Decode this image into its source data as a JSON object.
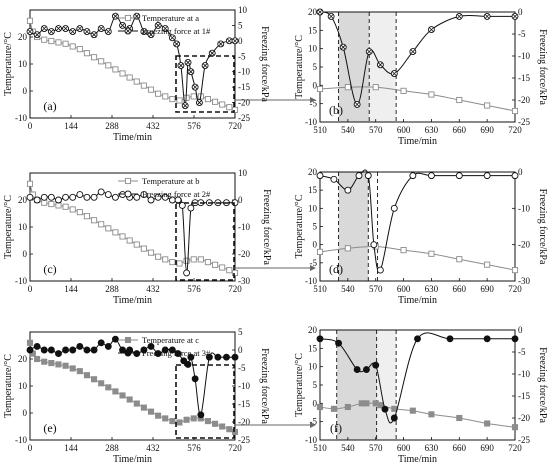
{
  "chart_data": [
    {
      "panel": "(a)",
      "type": "line",
      "xlabel": "Time/min",
      "ylabel": "Temperature/°C",
      "y2label": "Freezing force/kPa",
      "xlim": [
        0,
        720
      ],
      "xticks": [
        0,
        144,
        288,
        432,
        576,
        720
      ],
      "ylim": [
        -10,
        30
      ],
      "yticks": [
        -10,
        0,
        10,
        20
      ],
      "y2lim": [
        -25,
        10
      ],
      "y2ticks": [
        -25,
        -20,
        -15,
        -10,
        -5,
        0,
        5,
        10
      ],
      "legend": [
        "Temperature at a",
        "Freezing force at 1#"
      ],
      "series": [
        {
          "name": "Temperature at a",
          "axis": "left",
          "marker": "square-open",
          "x": [
            0,
            10,
            25,
            50,
            75,
            100,
            125,
            150,
            175,
            200,
            225,
            250,
            275,
            300,
            325,
            350,
            375,
            400,
            425,
            450,
            475,
            500,
            525,
            550,
            575,
            600,
            625,
            650,
            675,
            700,
            720
          ],
          "y": [
            26,
            22,
            20,
            19,
            18.5,
            18,
            17.5,
            16.5,
            15.5,
            14,
            12.5,
            11,
            9.5,
            8,
            6.5,
            5,
            3.5,
            2,
            0.5,
            -1,
            -2,
            -3,
            -3.5,
            -2.5,
            -2,
            -2,
            -3,
            -4,
            -5,
            -6,
            -7
          ]
        },
        {
          "name": "Freezing force at 1#",
          "axis": "right",
          "marker": "circle-x",
          "x": [
            0,
            25,
            50,
            75,
            100,
            125,
            150,
            175,
            200,
            225,
            250,
            275,
            300,
            325,
            350,
            375,
            400,
            425,
            450,
            475,
            500,
            515,
            530,
            545,
            555,
            565,
            580,
            595,
            615,
            640,
            670,
            700,
            720
          ],
          "y": [
            3,
            2,
            4,
            3,
            4,
            4,
            3,
            4,
            3,
            2,
            4,
            3,
            8,
            5,
            4,
            8,
            3,
            2,
            5,
            4,
            1,
            -1,
            -8,
            -21,
            -7,
            -10,
            -15,
            -20,
            -8,
            -4,
            -1,
            0,
            0
          ]
        }
      ]
    },
    {
      "panel": "(b)",
      "type": "line",
      "xlim": [
        510,
        720
      ],
      "xticks": [
        510,
        540,
        570,
        600,
        630,
        660,
        690,
        720
      ],
      "ylim": [
        -10,
        20
      ],
      "yticks": [
        -10,
        -5,
        0,
        5,
        10,
        15,
        20
      ],
      "y2lim": [
        -25,
        0
      ],
      "y2ticks": [
        -25,
        -20,
        -15,
        -10,
        -5,
        0
      ],
      "shaded": [
        [
          530,
          563
        ],
        [
          563,
          592
        ]
      ],
      "dashed_lines": [
        530,
        563,
        592
      ],
      "series": [
        {
          "name": "Temperature at a",
          "axis": "left",
          "marker": "square-open",
          "x": [
            510,
            540,
            570,
            600,
            630,
            660,
            690,
            720
          ],
          "y": [
            -1,
            -0.5,
            -0.5,
            -1.5,
            -2.5,
            -4,
            -5.5,
            -7
          ]
        },
        {
          "name": "Freezing force at 1#",
          "axis": "right",
          "marker": "circle-x",
          "x": [
            510,
            522,
            535,
            550,
            563,
            575,
            590,
            610,
            630,
            660,
            690,
            720
          ],
          "y": [
            0,
            -1,
            -8,
            -21,
            -9,
            -12,
            -14,
            -9,
            -4,
            -1,
            -1,
            -1
          ]
        }
      ]
    },
    {
      "panel": "(c)",
      "type": "line",
      "xlabel": "Time/min",
      "ylabel": "Temperature/°C",
      "y2label": "Freezing force/kPa",
      "xlim": [
        0,
        720
      ],
      "xticks": [
        0,
        144,
        288,
        432,
        576,
        720
      ],
      "ylim": [
        -10,
        30
      ],
      "yticks": [
        -10,
        0,
        10,
        20
      ],
      "y2lim": [
        -30,
        10
      ],
      "y2ticks": [
        -30,
        -20,
        -10,
        0,
        10
      ],
      "legend": [
        "Temperature at b",
        "Freezing force at 2#"
      ],
      "series": [
        {
          "name": "Temperature at b",
          "axis": "left",
          "marker": "square-open",
          "x": [
            0,
            10,
            25,
            50,
            75,
            100,
            125,
            150,
            175,
            200,
            225,
            250,
            275,
            300,
            325,
            350,
            375,
            400,
            425,
            450,
            475,
            500,
            525,
            550,
            575,
            600,
            625,
            650,
            675,
            700,
            720
          ],
          "y": [
            26,
            22,
            20,
            19,
            18.5,
            18,
            17.5,
            16.5,
            15.5,
            14,
            12.5,
            11,
            9.5,
            8,
            6.5,
            5,
            3.5,
            2,
            0.5,
            -1,
            -2,
            -3,
            -3.5,
            -2.5,
            -2,
            -2,
            -3,
            -4,
            -5,
            -6,
            -7
          ]
        },
        {
          "name": "Freezing force at 2#",
          "axis": "right",
          "marker": "circle-open",
          "x": [
            0,
            25,
            50,
            75,
            100,
            125,
            150,
            175,
            200,
            225,
            250,
            275,
            300,
            325,
            350,
            375,
            400,
            425,
            450,
            475,
            500,
            520,
            535,
            550,
            565,
            580,
            600,
            630,
            660,
            690,
            720
          ],
          "y": [
            1,
            0,
            1,
            1,
            0,
            1,
            1,
            2,
            1,
            1,
            3,
            2,
            1,
            2,
            1,
            1,
            2,
            0,
            1,
            1,
            0,
            0,
            -2,
            -27,
            -3,
            -1,
            -1,
            -1,
            -1,
            -1,
            -1
          ]
        }
      ]
    },
    {
      "panel": "(d)",
      "type": "line",
      "xlim": [
        510,
        720
      ],
      "xticks": [
        510,
        540,
        570,
        600,
        630,
        660,
        690,
        720
      ],
      "ylim": [
        -10,
        20
      ],
      "yticks": [
        -10,
        -5,
        0,
        5,
        10,
        15,
        20
      ],
      "y2lim": [
        -30,
        0
      ],
      "y2ticks": [
        -30,
        -20,
        -10,
        0
      ],
      "shaded": [
        [
          530,
          562
        ]
      ],
      "dashed_lines": [
        530,
        562,
        572
      ],
      "series": [
        {
          "name": "Temperature at b",
          "axis": "left",
          "marker": "square-open",
          "x": [
            510,
            540,
            570,
            600,
            630,
            660,
            690,
            720
          ],
          "y": [
            -2,
            -1,
            -0.5,
            -1.5,
            -2.5,
            -4,
            -5.5,
            -7
          ]
        },
        {
          "name": "Freezing force at 2#",
          "axis": "right",
          "marker": "circle-open",
          "x": [
            510,
            525,
            540,
            552,
            562,
            568,
            575,
            590,
            610,
            630,
            660,
            690,
            720
          ],
          "y": [
            -1,
            -2,
            -5,
            -1,
            -1,
            -20,
            -27,
            -10,
            -1,
            -1,
            -1,
            -1,
            -1
          ]
        }
      ]
    },
    {
      "panel": "(e)",
      "type": "line",
      "xlabel": "Time/min",
      "ylabel": "Temperature/°C",
      "y2label": "Freezing force/kPa",
      "xlim": [
        0,
        720
      ],
      "xticks": [
        0,
        144,
        288,
        432,
        576,
        720
      ],
      "ylim": [
        -10,
        30
      ],
      "yticks": [
        -10,
        0,
        10,
        20
      ],
      "y2lim": [
        -25,
        5
      ],
      "y2ticks": [
        -25,
        -20,
        -15,
        -10,
        -5,
        0,
        5
      ],
      "legend": [
        "Temperature at c",
        "Freezing force at 3#"
      ],
      "series": [
        {
          "name": "Temperature at c",
          "axis": "left",
          "marker": "square-filled",
          "x": [
            0,
            10,
            25,
            50,
            75,
            100,
            125,
            150,
            175,
            200,
            225,
            250,
            275,
            300,
            325,
            350,
            375,
            400,
            425,
            450,
            475,
            500,
            525,
            550,
            575,
            600,
            625,
            650,
            675,
            700,
            720
          ],
          "y": [
            26,
            22,
            20,
            19,
            18.5,
            18,
            17.5,
            16.5,
            15.5,
            14,
            12.5,
            11,
            9.5,
            8,
            6.5,
            5,
            3.5,
            2,
            0.5,
            -1,
            -2,
            -3,
            -3.5,
            -2.5,
            -2,
            -2,
            -3,
            -4,
            -5,
            -6,
            -7
          ]
        },
        {
          "name": "Freezing force at 3#",
          "axis": "right",
          "marker": "circle-filled",
          "x": [
            0,
            25,
            50,
            75,
            100,
            125,
            150,
            175,
            200,
            225,
            250,
            275,
            300,
            325,
            350,
            375,
            400,
            425,
            450,
            475,
            500,
            520,
            540,
            555,
            565,
            580,
            600,
            630,
            660,
            690,
            720
          ],
          "y": [
            0,
            1,
            0,
            0,
            -1,
            0,
            0,
            1,
            0,
            0,
            2,
            1,
            3,
            0,
            0,
            -1,
            0,
            1,
            -1,
            0,
            0,
            -1,
            -3,
            -4,
            -2,
            -8,
            -18,
            -2,
            -2,
            -2,
            -2
          ]
        }
      ]
    },
    {
      "panel": "(f)",
      "type": "line",
      "xlim": [
        510,
        720
      ],
      "xticks": [
        510,
        540,
        570,
        600,
        630,
        660,
        690,
        720
      ],
      "ylim": [
        -10,
        20
      ],
      "yticks": [
        -10,
        -5,
        0,
        5,
        10,
        15,
        20
      ],
      "y2lim": [
        -25,
        0
      ],
      "y2ticks": [
        -25,
        -20,
        -15,
        -10,
        -5,
        0
      ],
      "shaded": [
        [
          528,
          571
        ],
        [
          571,
          592
        ]
      ],
      "dashed_lines": [
        528,
        571,
        592
      ],
      "series": [
        {
          "name": "Temperature at c",
          "axis": "left",
          "marker": "square-filled",
          "x": [
            510,
            525,
            540,
            555,
            560,
            570,
            575,
            590,
            610,
            630,
            660,
            690,
            720
          ],
          "y": [
            -1,
            -1.5,
            -1,
            0,
            0,
            0,
            -0.5,
            -1.5,
            -2,
            -3,
            -4,
            -5.5,
            -6.5
          ]
        },
        {
          "name": "Freezing force at 3#",
          "axis": "right",
          "marker": "circle-filled",
          "x": [
            510,
            530,
            550,
            560,
            570,
            580,
            590,
            615,
            650,
            690,
            720
          ],
          "y": [
            -2,
            -3,
            -9,
            -9,
            -8,
            -18,
            -20,
            -2,
            -2,
            -2,
            -2
          ]
        }
      ]
    }
  ],
  "panel_labels": [
    "(a)",
    "(b)",
    "(c)",
    "(d)",
    "(e)",
    "(f)"
  ]
}
